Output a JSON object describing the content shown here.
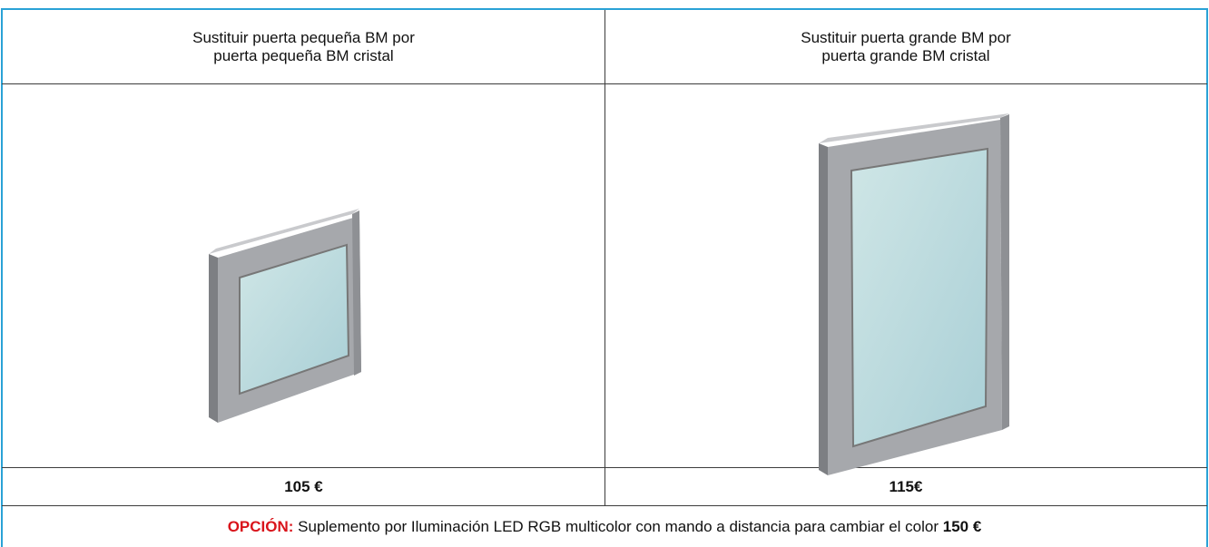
{
  "table": {
    "header": [
      {
        "line1": "Sustituir puerta pequeña BM por",
        "highlight": "puerta pequeña",
        "rest": " BM cristal"
      },
      {
        "line1": "Sustituir puerta grande BM por",
        "highlight": "puerta grande",
        "rest": " BM cristal"
      }
    ],
    "prices": [
      "105 €",
      "115€"
    ],
    "option": {
      "label": "OPCIÓN:",
      "text": " Suplemento por Iluminación LED RGB multicolor con mando a distancia para cambiar el color ",
      "price": "150 €"
    }
  }
}
